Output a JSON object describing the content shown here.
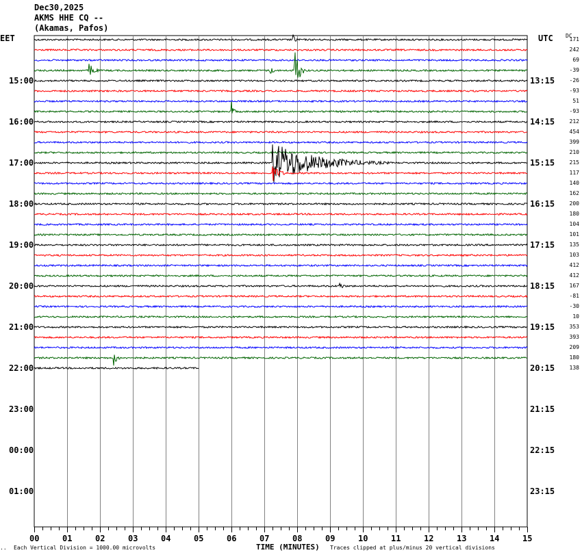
{
  "header": {
    "date": "Dec30,2025",
    "station": "AKMS HHE CQ --",
    "location": "(Akamas, Pafos)"
  },
  "left_tz": "EET",
  "right_tz": "UTC",
  "dc_label": "DC",
  "footer": {
    "corner_mark": "..",
    "left_note": "Each Vertical Division = 1000.00 microvolts",
    "x_title": "TIME (MINUTES)",
    "right_note": "Traces clipped at plus/minus 20 vertical divisions"
  },
  "chart_data": {
    "type": "line",
    "title": "",
    "xlabel": "TIME (MINUTES)",
    "x_ticks": [
      "00",
      "01",
      "02",
      "03",
      "04",
      "05",
      "06",
      "07",
      "08",
      "09",
      "10",
      "11",
      "12",
      "13",
      "14",
      "15"
    ],
    "xlim": [
      0,
      15
    ],
    "left_hour_labels": [
      "15:00",
      "16:00",
      "17:00",
      "18:00",
      "19:00",
      "20:00",
      "21:00",
      "22:00",
      "23:00",
      "00:00",
      "01:00"
    ],
    "right_hour_labels": [
      "13:15",
      "14:15",
      "15:15",
      "16:15",
      "17:15",
      "18:15",
      "19:15",
      "20:15",
      "21:15",
      "22:15",
      "23:15"
    ],
    "trace_colors": [
      "#000000",
      "#ff0000",
      "#0000ff",
      "#006400"
    ],
    "dc_offsets": [
      "171",
      "242",
      "69",
      "-39",
      "-26",
      "-93",
      "51",
      "-93",
      "212",
      "454",
      "399",
      "210",
      "215",
      "117",
      "140",
      "162",
      "200",
      "180",
      "104",
      "101",
      "135",
      "103",
      "412",
      "412",
      "167",
      "-81",
      "-30",
      "10",
      "353",
      "393",
      "209",
      "180",
      "138"
    ],
    "trace_end_minutes": [
      15,
      15,
      15,
      15,
      15,
      15,
      15,
      15,
      15,
      15,
      15,
      15,
      15,
      15,
      15,
      15,
      15,
      15,
      15,
      15,
      15,
      15,
      15,
      15,
      15,
      15,
      15,
      15,
      15,
      15,
      15,
      15,
      5
    ],
    "events": [
      {
        "trace": 0,
        "minute": 7.9,
        "amplitude": 6,
        "duration": 0.3
      },
      {
        "trace": 3,
        "minute": 1.7,
        "amplitude": 10,
        "duration": 0.4
      },
      {
        "trace": 3,
        "minute": 7.2,
        "amplitude": 5,
        "duration": 0.4
      },
      {
        "trace": 3,
        "minute": 7.95,
        "amplitude": 30,
        "duration": 0.35
      },
      {
        "trace": 7,
        "minute": 6.05,
        "amplitude": 7,
        "duration": 0.2
      },
      {
        "trace": 7,
        "minute": 12.0,
        "amplitude": 3,
        "duration": 0.3
      },
      {
        "trace": 12,
        "minute": 7.3,
        "amplitude": 30,
        "duration": 3.5
      },
      {
        "trace": 13,
        "minute": 7.3,
        "amplitude": 10,
        "duration": 0.6
      },
      {
        "trace": 24,
        "minute": 9.3,
        "amplitude": 5,
        "duration": 0.4
      },
      {
        "trace": 31,
        "minute": 2.45,
        "amplitude": 9,
        "duration": 0.3
      }
    ]
  }
}
